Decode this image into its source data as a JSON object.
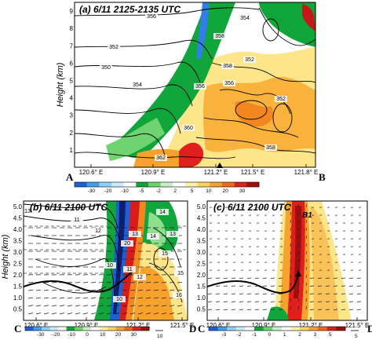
{
  "colorbar_colors": [
    "#1e5fd6",
    "#3fa0ee",
    "#8fd0f7",
    "#c8ecfb",
    "#ffffff",
    "#0fa53a",
    "#6fd36f",
    "#c7f0c7",
    "#ffffff",
    "#fff0a8",
    "#fdd35a",
    "#f7a22c",
    "#f26a16",
    "#e0201d",
    "#a10e0e"
  ],
  "panels": [
    {
      "id": "a",
      "title": "(a) 6/11 2125-2135 UTC",
      "ylabel": "Height (km)",
      "start_label": "A",
      "end_label": "B",
      "x_ticks": [
        "120.6° E",
        "120.9° E",
        "121.2° E",
        "121.5° E",
        "121.8° E"
      ],
      "y_ticks": [
        "1",
        "2",
        "3",
        "4",
        "5",
        "6",
        "7",
        "8",
        "9"
      ],
      "colorbar_labels": [
        "-30",
        "-20",
        "-10",
        "-5",
        "-2",
        "2",
        "5",
        "10",
        "20",
        "30"
      ],
      "contour_labels": [
        "356",
        "358",
        "354",
        "352",
        "358",
        "356",
        "350",
        "352",
        "354",
        "352",
        "360",
        "356",
        "358",
        "362"
      ],
      "marker": "triangle-up"
    },
    {
      "id": "b",
      "title": "(b) 6/11 2100 UTC",
      "ylabel": "Height (km)",
      "start_label": "C",
      "end_label": "D",
      "x_ticks": [
        "120.6° E",
        "120.9° E",
        "121.2° E",
        "121.5° E"
      ],
      "y_ticks": [
        "0.5",
        "1.0",
        "1.5",
        "2.0",
        "2.5",
        "3.0",
        "3.5",
        "4.0",
        "4.5",
        "5.0"
      ],
      "colorbar_labels": [
        "-30",
        "-20",
        "-10",
        "0",
        "10",
        "20",
        "30"
      ],
      "vector_ref": "10",
      "contour_labels": [
        "13",
        "11",
        "14",
        "12",
        "13",
        "20",
        "15",
        "10",
        "11",
        "12",
        "16",
        "15",
        "10",
        "14",
        "13"
      ]
    },
    {
      "id": "c",
      "title": "(c) 6/11 2100 UTC",
      "start_label": "C",
      "end_label": "D",
      "x_ticks": [
        "120.6° E",
        "120.9° E",
        "121.2° E",
        "121.5° E"
      ],
      "y_ticks": [
        "0.5",
        "1.0",
        "1.5",
        "2.0",
        "2.5",
        "3.0",
        "3.5",
        "4.0",
        "4.5",
        "5.0"
      ],
      "colorbar_labels": [
        "-3",
        "-2",
        "-1",
        "0",
        "1",
        "2",
        "3",
        "5"
      ],
      "vector_ref": "5",
      "annotation": "B1"
    }
  ]
}
